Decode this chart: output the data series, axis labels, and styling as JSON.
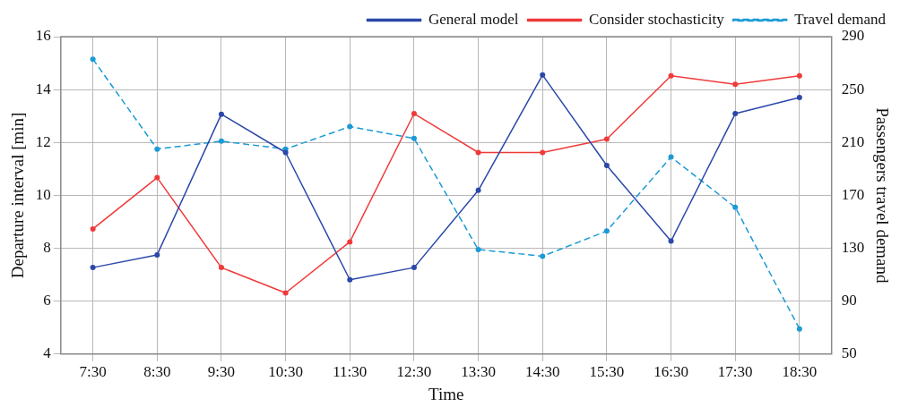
{
  "chart_data": {
    "type": "line",
    "xlabel": "Time",
    "ylabel": "Departure interval [min]",
    "y2label": "Passengers travel demand",
    "categories": [
      "7:30",
      "8:30",
      "9:30",
      "10:30",
      "11:30",
      "12:30",
      "13:30",
      "14:30",
      "15:30",
      "16:30",
      "17:30",
      "18:30"
    ],
    "series": [
      {
        "name": "General model",
        "color": "#2a48a8",
        "line_style": "solid",
        "values": [
          7.27,
          7.75,
          13.07,
          11.62,
          6.81,
          7.27,
          10.19,
          14.55,
          11.13,
          8.27,
          13.09,
          13.7
        ]
      },
      {
        "name": "Consider stochasticity",
        "color": "#f03a3a",
        "line_style": "solid",
        "values": [
          8.73,
          10.67,
          7.27,
          6.31,
          8.24,
          13.09,
          11.62,
          11.62,
          12.13,
          14.52,
          14.2,
          14.52
        ]
      },
      {
        "name": "Travel demand",
        "color": "#1a9ad6",
        "line_style": "dashed",
        "axis": "y2",
        "values": [
          273,
          205,
          211,
          205,
          222,
          213,
          129,
          124,
          143,
          199,
          161,
          69
        ]
      }
    ],
    "ylim": [
      4,
      16
    ],
    "yticks": [
      4,
      6,
      8,
      10,
      12,
      14,
      16
    ],
    "y2lim": [
      50,
      290
    ],
    "y2ticks": [
      50,
      90,
      130,
      170,
      210,
      250,
      290
    ],
    "grid": true,
    "legend": "top right",
    "marker": "circle"
  }
}
